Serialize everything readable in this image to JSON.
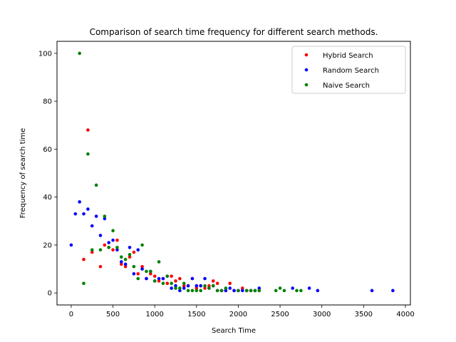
{
  "chart_data": {
    "type": "scatter",
    "title": "Comparison of search time frequency for different search methods.",
    "xlabel": "Search Time",
    "ylabel": "Frequency of search time",
    "xlim": [
      -170,
      4060
    ],
    "ylim": [
      -5,
      105
    ],
    "xticks": [
      0,
      500,
      1000,
      1500,
      2000,
      2500,
      3000,
      3500,
      4000
    ],
    "yticks": [
      0,
      20,
      40,
      60,
      80,
      100
    ],
    "grid": false,
    "legend_position": "top-right",
    "series": [
      {
        "name": "Hybrid Search",
        "color": "#ff0000",
        "points": [
          [
            150,
            14
          ],
          [
            200,
            68
          ],
          [
            250,
            17
          ],
          [
            350,
            11
          ],
          [
            400,
            20
          ],
          [
            450,
            19
          ],
          [
            500,
            18
          ],
          [
            550,
            22
          ],
          [
            600,
            12
          ],
          [
            650,
            11
          ],
          [
            700,
            15
          ],
          [
            750,
            17
          ],
          [
            800,
            8
          ],
          [
            850,
            11
          ],
          [
            900,
            6
          ],
          [
            950,
            8
          ],
          [
            1000,
            7
          ],
          [
            1050,
            5
          ],
          [
            1100,
            6
          ],
          [
            1150,
            4
          ],
          [
            1200,
            7
          ],
          [
            1250,
            5
          ],
          [
            1300,
            6
          ],
          [
            1350,
            3
          ],
          [
            1400,
            3
          ],
          [
            1450,
            6
          ],
          [
            1500,
            2
          ],
          [
            1550,
            3
          ],
          [
            1600,
            2
          ],
          [
            1650,
            3
          ],
          [
            1700,
            5
          ],
          [
            1750,
            4
          ],
          [
            1800,
            1
          ],
          [
            1850,
            1
          ],
          [
            1900,
            4
          ],
          [
            1950,
            1
          ],
          [
            2000,
            1
          ],
          [
            2050,
            2
          ],
          [
            2100,
            1
          ],
          [
            2150,
            1
          ],
          [
            2200,
            1
          ],
          [
            2250,
            1
          ]
        ]
      },
      {
        "name": "Random Search",
        "color": "#0000ff",
        "points": [
          [
            0,
            20
          ],
          [
            50,
            33
          ],
          [
            100,
            38
          ],
          [
            150,
            33
          ],
          [
            200,
            35
          ],
          [
            250,
            28
          ],
          [
            300,
            32
          ],
          [
            350,
            24
          ],
          [
            400,
            31
          ],
          [
            450,
            21
          ],
          [
            500,
            22
          ],
          [
            550,
            18
          ],
          [
            600,
            13
          ],
          [
            650,
            12
          ],
          [
            700,
            19
          ],
          [
            750,
            8
          ],
          [
            800,
            18
          ],
          [
            850,
            10
          ],
          [
            900,
            6
          ],
          [
            950,
            9
          ],
          [
            1000,
            5
          ],
          [
            1050,
            6
          ],
          [
            1100,
            6
          ],
          [
            1150,
            7
          ],
          [
            1200,
            2
          ],
          [
            1250,
            3
          ],
          [
            1300,
            1
          ],
          [
            1350,
            2
          ],
          [
            1400,
            3
          ],
          [
            1450,
            6
          ],
          [
            1500,
            3
          ],
          [
            1550,
            3
          ],
          [
            1600,
            6
          ],
          [
            1650,
            2
          ],
          [
            1700,
            3
          ],
          [
            1750,
            1
          ],
          [
            1800,
            1
          ],
          [
            1850,
            1
          ],
          [
            1900,
            2
          ],
          [
            1950,
            1
          ],
          [
            2000,
            1
          ],
          [
            2050,
            1
          ],
          [
            2100,
            1
          ],
          [
            2150,
            1
          ],
          [
            2200,
            1
          ],
          [
            2250,
            2
          ],
          [
            2650,
            2
          ],
          [
            2850,
            2
          ],
          [
            2950,
            1
          ],
          [
            3600,
            1
          ],
          [
            3850,
            1
          ]
        ]
      },
      {
        "name": "Naive Search",
        "color": "#008000",
        "points": [
          [
            100,
            100
          ],
          [
            150,
            4
          ],
          [
            200,
            58
          ],
          [
            250,
            18
          ],
          [
            300,
            45
          ],
          [
            350,
            18
          ],
          [
            400,
            32
          ],
          [
            450,
            19
          ],
          [
            500,
            26
          ],
          [
            550,
            19
          ],
          [
            600,
            15
          ],
          [
            650,
            14
          ],
          [
            700,
            16
          ],
          [
            750,
            11
          ],
          [
            800,
            6
          ],
          [
            850,
            20
          ],
          [
            900,
            9
          ],
          [
            950,
            9
          ],
          [
            1000,
            5
          ],
          [
            1050,
            13
          ],
          [
            1100,
            4
          ],
          [
            1150,
            7
          ],
          [
            1200,
            4
          ],
          [
            1250,
            2
          ],
          [
            1300,
            2
          ],
          [
            1350,
            4
          ],
          [
            1400,
            1
          ],
          [
            1450,
            1
          ],
          [
            1500,
            1
          ],
          [
            1550,
            1
          ],
          [
            1600,
            3
          ],
          [
            1650,
            2
          ],
          [
            1700,
            3
          ],
          [
            1750,
            1
          ],
          [
            1800,
            1
          ],
          [
            1850,
            2
          ],
          [
            2000,
            1
          ],
          [
            2100,
            1
          ],
          [
            2150,
            1
          ],
          [
            2200,
            1
          ],
          [
            2250,
            1
          ],
          [
            2450,
            1
          ],
          [
            2500,
            2
          ],
          [
            2550,
            1
          ],
          [
            2700,
            1
          ],
          [
            2750,
            1
          ]
        ]
      }
    ]
  }
}
